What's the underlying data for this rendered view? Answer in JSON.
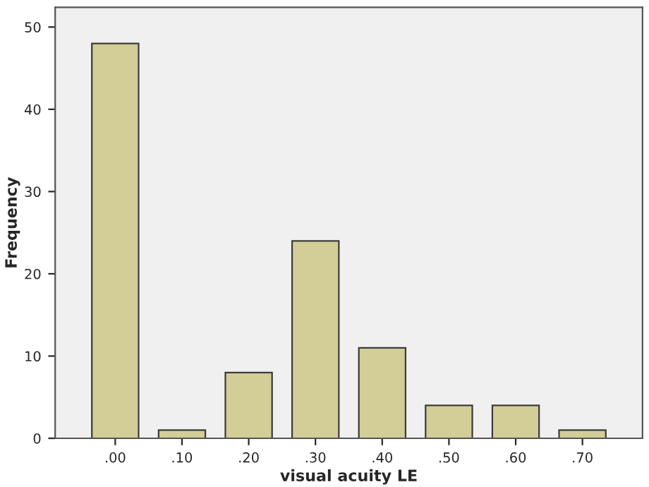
{
  "chart_data": {
    "type": "bar",
    "xlabel": "visual acuity LE",
    "ylabel": "Frequency",
    "categories": [
      ".00",
      ".10",
      ".20",
      ".30",
      ".40",
      ".50",
      ".60",
      ".70"
    ],
    "values": [
      48,
      1,
      8,
      24,
      11,
      4,
      4,
      1
    ],
    "color": "#d3ce97",
    "ylim": [
      0,
      52.4
    ],
    "yticks": [
      0,
      10,
      20,
      30,
      40,
      50
    ],
    "grid": false
  }
}
